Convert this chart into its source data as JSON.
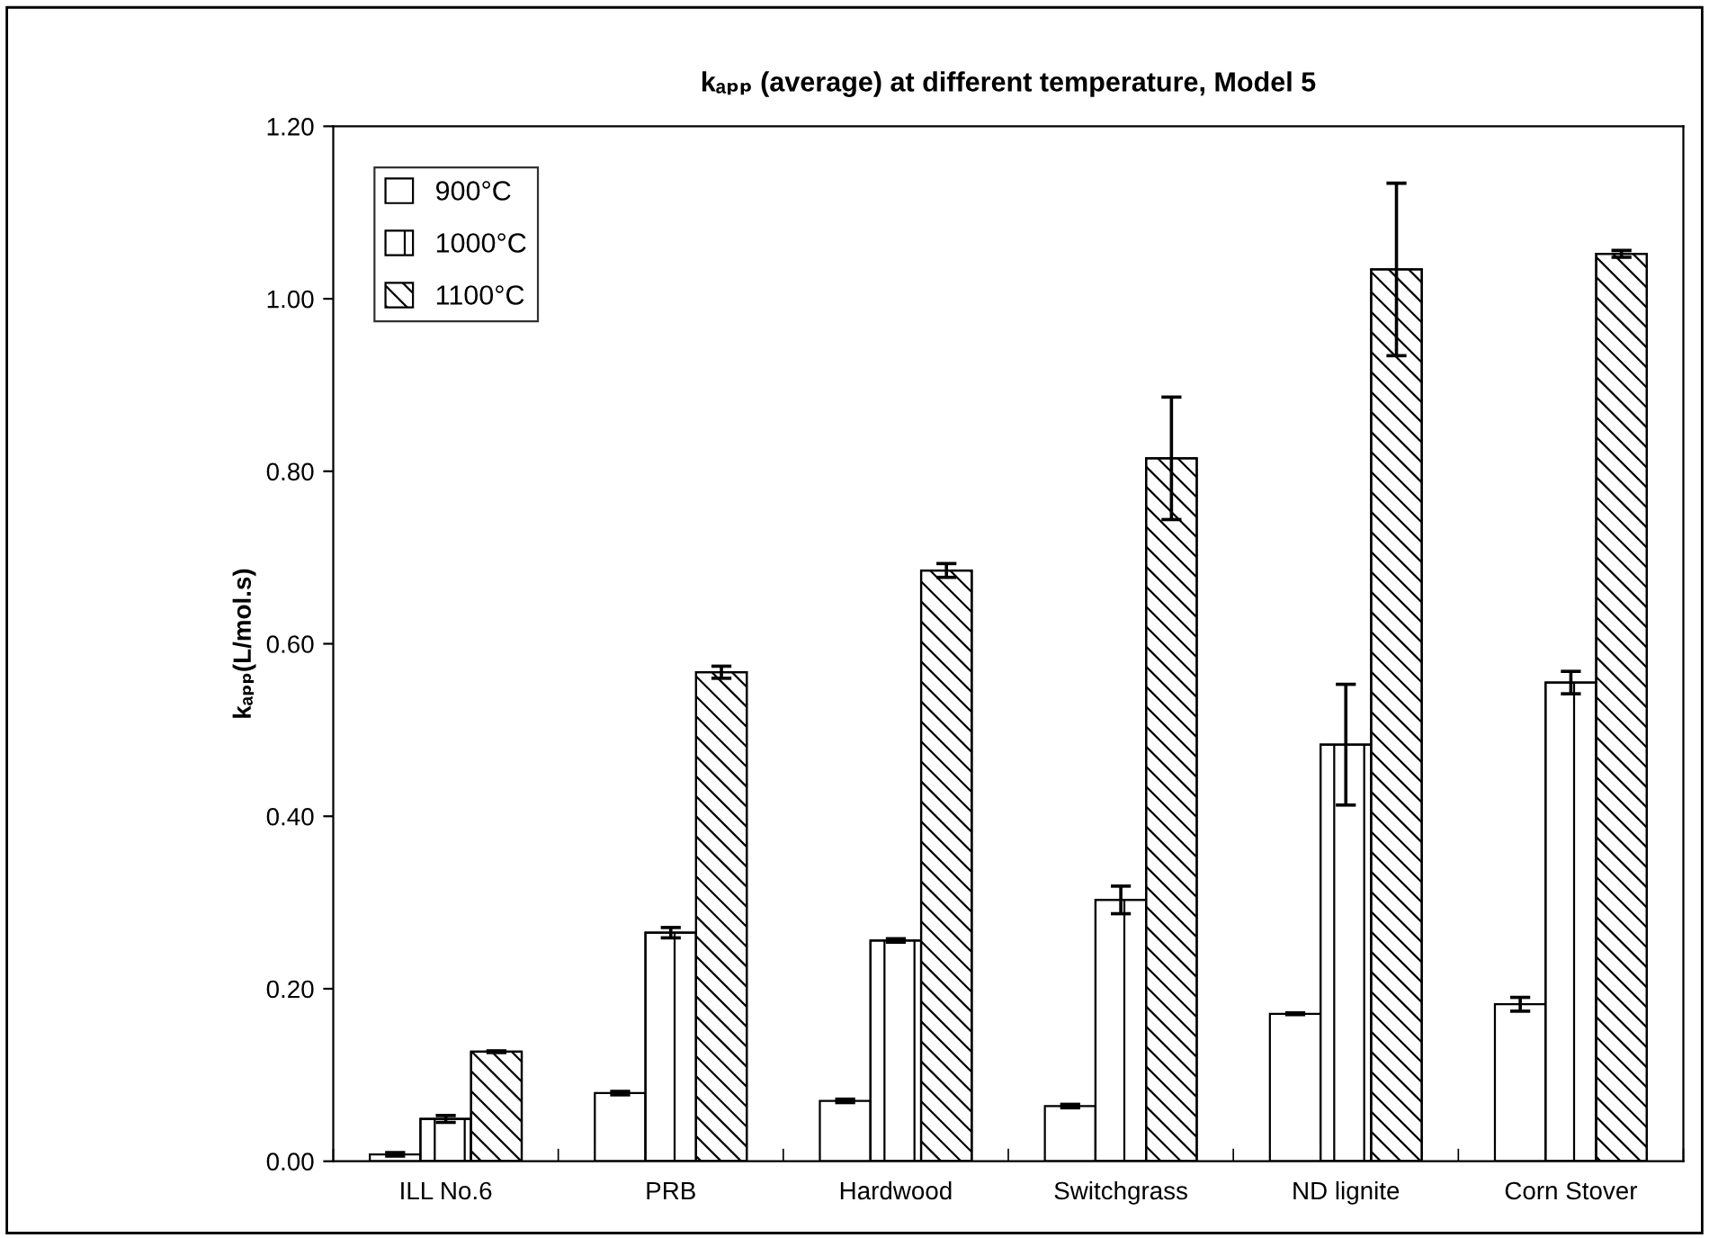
{
  "chart_data": {
    "type": "bar",
    "title": "kₐₚₚ (average) at different temperature, Model 5",
    "ylabel": "kₐₚₚ(L/mol.s)",
    "categories": [
      "ILL No.6",
      "PRB",
      "Hardwood",
      "Switchgrass",
      "ND lignite",
      "Corn Stover"
    ],
    "series": [
      {
        "name": "900°C",
        "color": "#ffffff",
        "values": [
          0.008,
          0.079,
          0.07,
          0.064,
          0.171,
          0.182
        ],
        "errors": [
          0.002,
          0.002,
          0.002,
          0.002,
          0.001,
          0.008
        ]
      },
      {
        "name": "1000°C",
        "color": "#000000",
        "values": [
          0.049,
          0.265,
          0.256,
          0.303,
          0.483,
          0.555
        ],
        "errors": [
          0.004,
          0.006,
          0.002,
          0.016,
          0.07,
          0.013
        ]
      },
      {
        "name": "1100°C",
        "color": "#000000",
        "values": [
          0.127,
          0.567,
          0.685,
          0.815,
          1.034,
          1.052
        ],
        "errors": [
          0.001,
          0.007,
          0.008,
          0.071,
          0.1,
          0.004
        ]
      }
    ],
    "ylim": [
      0,
      1.2
    ],
    "yticks": [
      {
        "value": 0,
        "label": "0.00"
      },
      {
        "value": 0.2,
        "label": "0.20"
      },
      {
        "value": 0.4,
        "label": "0.40"
      },
      {
        "value": 0.6,
        "label": "0.60"
      },
      {
        "value": 0.8,
        "label": "0.80"
      },
      {
        "value": 1.0,
        "label": "1.00"
      },
      {
        "value": 1.2,
        "label": "1.20"
      }
    ],
    "legend": "top left",
    "grid": false
  }
}
